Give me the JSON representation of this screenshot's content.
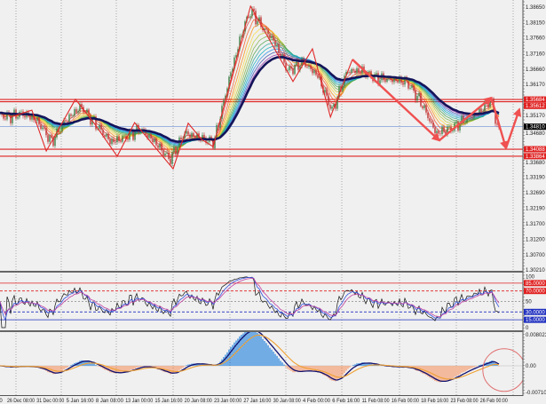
{
  "chart_data": {
    "type": "candlestick",
    "instrument_panels": [
      "price",
      "oscillator",
      "macd"
    ],
    "x_ticks_partial_first": "20",
    "x_ticks": [
      "26 Dec 08:00",
      "31 Dec 00:00",
      "5 Jan 16:00",
      "8 Jan 08:00",
      "13 Jan 00:00",
      "15 Jan 16:00",
      "20 Jan 08:00",
      "23 Jan 00:00",
      "27 Jan 16:00",
      "30 Jan 08:00",
      "4 Feb 00:00",
      "6 Feb 16:00",
      "11 Feb 08:00",
      "16 Feb 00:00",
      "18 Feb 16:00",
      "23 Feb 08:00",
      "26 Feb 00:00"
    ],
    "price_axis": {
      "range": [
        1.3021,
        1.3865
      ],
      "ticks": [
        "1.38650",
        "1.38150",
        "1.37660",
        "1.37160",
        "1.36660",
        "1.36170",
        "1.35170",
        "1.34680",
        "1.33680",
        "1.33190",
        "1.32690",
        "1.32190",
        "1.31700",
        "1.31200",
        "1.30700",
        "1.30210"
      ]
    },
    "price_samples": [
      {
        "t": "25 Dec 04:00",
        "p": 1.3517
      },
      {
        "t": "26 Dec 08:00",
        "p": 1.3512
      },
      {
        "t": "28 Dec 16:00",
        "p": 1.3523
      },
      {
        "t": "31 Dec 00:00",
        "p": 1.3503
      },
      {
        "t": "2 Jan 20:00",
        "p": 1.3432
      },
      {
        "t": "5 Jan 16:00",
        "p": 1.3503
      },
      {
        "t": "7 Jan 00:00",
        "p": 1.3546
      },
      {
        "t": "8 Jan 08:00",
        "p": 1.3489
      },
      {
        "t": "10 Jan 16:00",
        "p": 1.3432
      },
      {
        "t": "13 Jan 00:00",
        "p": 1.3446
      },
      {
        "t": "14 Jan 08:00",
        "p": 1.3474
      },
      {
        "t": "15 Jan 16:00",
        "p": 1.3432
      },
      {
        "t": "18 Jan 00:00",
        "p": 1.3375
      },
      {
        "t": "20 Jan 08:00",
        "p": 1.346
      },
      {
        "t": "21 Jan 16:00",
        "p": 1.3446
      },
      {
        "t": "23 Jan 00:00",
        "p": 1.3432
      },
      {
        "t": "25 Jan 08:00",
        "p": 1.3631
      },
      {
        "t": "27 Jan 16:00",
        "p": 1.3802
      },
      {
        "t": "28 Jan 08:00",
        "p": 1.3854
      },
      {
        "t": "29 Jan 00:00",
        "p": 1.3817
      },
      {
        "t": "30 Jan 08:00",
        "p": 1.376
      },
      {
        "t": "1 Feb 16:00",
        "p": 1.366
      },
      {
        "t": "4 Feb 00:00",
        "p": 1.3688
      },
      {
        "t": "5 Feb 08:00",
        "p": 1.3646
      },
      {
        "t": "6 Feb 16:00",
        "p": 1.3531
      },
      {
        "t": "9 Feb 00:00",
        "p": 1.366
      },
      {
        "t": "11 Feb 08:00",
        "p": 1.366
      },
      {
        "t": "13 Feb 16:00",
        "p": 1.3637
      },
      {
        "t": "16 Feb 00:00",
        "p": 1.3631
      },
      {
        "t": "17 Feb 08:00",
        "p": 1.3626
      },
      {
        "t": "18 Feb 16:00",
        "p": 1.356
      },
      {
        "t": "21 Feb 00:00",
        "p": 1.346
      },
      {
        "t": "23 Feb 08:00",
        "p": 1.3474
      },
      {
        "t": "24 Feb 16:00",
        "p": 1.3503
      },
      {
        "t": "26 Feb 00:00",
        "p": 1.3531
      },
      {
        "t": "27 Feb 00:00",
        "p": 1.3569
      },
      {
        "t": "27 Feb 16:00",
        "p": 1.346
      }
    ],
    "horizontal_lines": [
      {
        "label": "1.35684",
        "price": 1.35684,
        "color": "#e02020",
        "style": "solid"
      },
      {
        "label": "1.35612",
        "price": 1.35612,
        "color": "#e02020",
        "style": "solid"
      },
      {
        "label": "1.34810",
        "price": 1.3481,
        "color": "#6a8fd8",
        "style": "solid",
        "tag_color": "#000000"
      },
      {
        "label": "1.34088",
        "price": 1.34088,
        "color": "#e02020",
        "style": "solid"
      },
      {
        "label": "1.33864",
        "price": 1.33864,
        "color": "#e02020",
        "style": "solid"
      }
    ],
    "zigzag": [
      {
        "t": "26 Dec 21:00",
        "p": 1.3512
      },
      {
        "t": "30 Dec 06:00",
        "p": 1.3534
      },
      {
        "t": "1 Jan 20:00",
        "p": 1.3403
      },
      {
        "t": "6 Jan 12:00",
        "p": 1.3569
      },
      {
        "t": "8 Jan 06:00",
        "p": 1.3489
      },
      {
        "t": "11 Jan 17:00",
        "p": 1.3386
      },
      {
        "t": "13 Jan 20:00",
        "p": 1.3494
      },
      {
        "t": "18 Jan 13:00",
        "p": 1.3346
      },
      {
        "t": "20 Jan 16:00",
        "p": 1.3492
      },
      {
        "t": "21 Jan 21:00",
        "p": 1.344
      },
      {
        "t": "22 Jan 22:00",
        "p": 1.3417
      },
      {
        "t": "28 Jan 07:00",
        "p": 1.3868
      },
      {
        "t": "2 Feb 11:00",
        "p": 1.3626
      },
      {
        "t": "4 Feb 21:00",
        "p": 1.3731
      },
      {
        "t": "6 Feb 12:00",
        "p": 1.3512
      },
      {
        "t": "9 Feb 20:00",
        "p": 1.3697
      }
    ],
    "forecast_arrows": [
      {
        "t": "9 Feb 20:00",
        "p": 1.3697
      },
      {
        "t": "21 Feb 13:00",
        "p": 1.3437
      },
      {
        "t": "27 Feb 00:00",
        "p": 1.3574
      },
      {
        "t": "28 Feb 08:00",
        "p": 1.3412
      },
      {
        "t": "1 Mar 13:00",
        "p": 1.3537
      }
    ],
    "moving_average_color": "#14145a",
    "ribbon_colors": [
      "#e53935",
      "#f4511e",
      "#fb8c00",
      "#fdd835",
      "#c0ca33",
      "#7cb342",
      "#43a047",
      "#26a69a",
      "#00acc1",
      "#1e88e5",
      "#3949ab",
      "#8e24aa",
      "#d81b60"
    ],
    "oscillator": {
      "range": [
        0,
        100
      ],
      "axis_labels": [
        {
          "label": "100",
          "value": 100
        },
        {
          "label": "50",
          "value": 50
        },
        {
          "label": "0",
          "value": 0
        }
      ],
      "levels": [
        {
          "label": "85.0000",
          "value": 85,
          "color": "#e02020",
          "style": "solid"
        },
        {
          "label": "70.0000",
          "value": 70,
          "color": "#e02020",
          "style": "dashed"
        },
        {
          "label": "30.0000",
          "value": 30,
          "color": "#2030c0",
          "style": "dashed"
        },
        {
          "label": "15.0000",
          "value": 15,
          "color": "#2030c0",
          "style": "solid"
        }
      ],
      "line_colors": [
        "#111111",
        "#3050e0",
        "#c040a0"
      ]
    },
    "macd": {
      "range": [
        -0.0071021,
        0.0080237
      ],
      "axis_labels": [
        {
          "label": "0.0080237",
          "value": 0.0080237
        },
        {
          "label": "0.00",
          "value": 0
        },
        {
          "label": "-0.0071021",
          "value": -0.0071021
        }
      ],
      "positive_color": "#3b8fe0",
      "negative_color": "#f4a27a",
      "line_colors": [
        "#101070",
        "#f0a030"
      ],
      "highlight_circle": {
        "t": "28 Feb 04:00",
        "value": -0.0011,
        "color": "#e07070"
      }
    }
  }
}
